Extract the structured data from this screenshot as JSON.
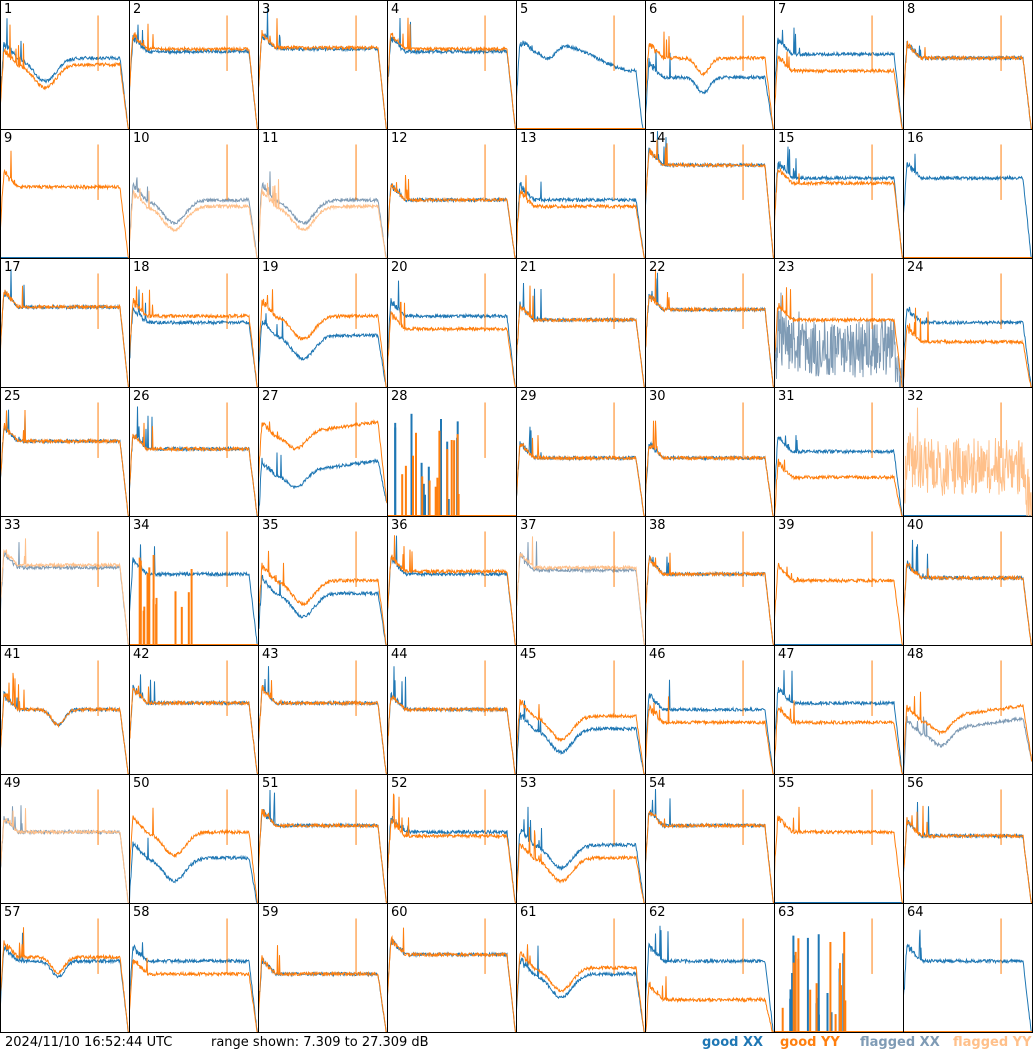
{
  "footer": {
    "timestamp": "2024/11/10 16:52:44 UTC",
    "range_text": "range shown: 7.309 to 27.309 dB"
  },
  "legend": [
    {
      "label": "good XX",
      "color": "#1f77b4"
    },
    {
      "label": "good YY",
      "color": "#ff7f0e"
    },
    {
      "label": "flagged XX",
      "color": "#7f9bb5"
    },
    {
      "label": "flagged YY",
      "color": "#ffc08a"
    }
  ],
  "chart_data": {
    "type": "line",
    "ylim": [
      7.309,
      27.309
    ],
    "yunit": "dB",
    "grid_layout": "8x8",
    "panels": [
      {
        "id": "1",
        "xx": "good",
        "yy": "good",
        "xx_level": 0.55,
        "yy_level": 0.5,
        "shape": "sag"
      },
      {
        "id": "2",
        "xx": "good",
        "yy": "good",
        "xx_level": 0.6,
        "yy_level": 0.62,
        "shape": "flat"
      },
      {
        "id": "3",
        "xx": "good",
        "yy": "good",
        "xx_level": 0.62,
        "yy_level": 0.63,
        "shape": "flat"
      },
      {
        "id": "4",
        "xx": "good",
        "yy": "good",
        "xx_level": 0.6,
        "yy_level": 0.62,
        "shape": "flat"
      },
      {
        "id": "5",
        "xx": "good",
        "yy": "dead",
        "xx_level": 0.55,
        "yy_level": 0,
        "shape": "hump"
      },
      {
        "id": "6",
        "xx": "good",
        "yy": "good",
        "xx_level": 0.4,
        "yy_level": 0.55,
        "shape": "dip"
      },
      {
        "id": "7",
        "xx": "good",
        "yy": "good",
        "xx_level": 0.58,
        "yy_level": 0.45,
        "shape": "flat"
      },
      {
        "id": "8",
        "xx": "good",
        "yy": "good",
        "xx_level": 0.55,
        "yy_level": 0.55,
        "shape": "flat"
      },
      {
        "id": "9",
        "xx": "dead",
        "yy": "good",
        "xx_level": 0,
        "yy_level": 0.55,
        "shape": "flat"
      },
      {
        "id": "10",
        "xx": "flagged",
        "yy": "flagged",
        "xx_level": 0.45,
        "yy_level": 0.4,
        "shape": "sag"
      },
      {
        "id": "11",
        "xx": "flagged",
        "yy": "flagged",
        "xx_level": 0.45,
        "yy_level": 0.4,
        "shape": "sag"
      },
      {
        "id": "12",
        "xx": "good",
        "yy": "good",
        "xx_level": 0.45,
        "yy_level": 0.45,
        "shape": "flat"
      },
      {
        "id": "13",
        "xx": "good",
        "yy": "good",
        "xx_level": 0.45,
        "yy_level": 0.4,
        "shape": "flat"
      },
      {
        "id": "14",
        "xx": "good",
        "yy": "good",
        "xx_level": 0.72,
        "yy_level": 0.72,
        "shape": "flat"
      },
      {
        "id": "15",
        "xx": "good",
        "yy": "good",
        "xx_level": 0.62,
        "yy_level": 0.58,
        "shape": "flat"
      },
      {
        "id": "16",
        "xx": "good",
        "yy": "dead",
        "xx_level": 0.62,
        "yy_level": 0,
        "shape": "flat"
      },
      {
        "id": "17",
        "xx": "good",
        "yy": "good",
        "xx_level": 0.62,
        "yy_level": 0.62,
        "shape": "flat"
      },
      {
        "id": "18",
        "xx": "good",
        "yy": "good",
        "xx_level": 0.5,
        "yy_level": 0.55,
        "shape": "flat"
      },
      {
        "id": "19",
        "xx": "good",
        "yy": "good",
        "xx_level": 0.4,
        "yy_level": 0.55,
        "shape": "sag"
      },
      {
        "id": "20",
        "xx": "good",
        "yy": "good",
        "xx_level": 0.55,
        "yy_level": 0.45,
        "shape": "flat"
      },
      {
        "id": "21",
        "xx": "good",
        "yy": "good",
        "xx_level": 0.52,
        "yy_level": 0.52,
        "shape": "flat"
      },
      {
        "id": "22",
        "xx": "good",
        "yy": "good",
        "xx_level": 0.6,
        "yy_level": 0.6,
        "shape": "flat"
      },
      {
        "id": "23",
        "xx": "flagged",
        "yy": "good",
        "xx_level": 0.3,
        "yy_level": 0.52,
        "shape": "noise"
      },
      {
        "id": "24",
        "xx": "good",
        "yy": "good",
        "xx_level": 0.5,
        "yy_level": 0.35,
        "shape": "flat"
      },
      {
        "id": "25",
        "xx": "good",
        "yy": "good",
        "xx_level": 0.58,
        "yy_level": 0.58,
        "shape": "flat"
      },
      {
        "id": "26",
        "xx": "good",
        "yy": "good",
        "xx_level": 0.52,
        "yy_level": 0.52,
        "shape": "flat"
      },
      {
        "id": "27",
        "xx": "good",
        "yy": "good",
        "xx_level": 0.3,
        "yy_level": 0.6,
        "shape": "rise"
      },
      {
        "id": "28",
        "xx": "dead",
        "yy": "dead",
        "xx_level": 0,
        "yy_level": 0,
        "shape": "spikes"
      },
      {
        "id": "29",
        "xx": "good",
        "yy": "good",
        "xx_level": 0.45,
        "yy_level": 0.45,
        "shape": "flat"
      },
      {
        "id": "30",
        "xx": "good",
        "yy": "good",
        "xx_level": 0.45,
        "yy_level": 0.45,
        "shape": "flat"
      },
      {
        "id": "31",
        "xx": "good",
        "yy": "good",
        "xx_level": 0.5,
        "yy_level": 0.3,
        "shape": "flat"
      },
      {
        "id": "32",
        "xx": "dead",
        "yy": "flagged",
        "xx_level": 0,
        "yy_level": 0.38,
        "shape": "noise"
      },
      {
        "id": "33",
        "xx": "flagged",
        "yy": "flagged",
        "xx_level": 0.6,
        "yy_level": 0.62,
        "shape": "flat"
      },
      {
        "id": "34",
        "xx": "good",
        "yy": "dead",
        "xx_level": 0.55,
        "yy_level": 0,
        "shape": "spikes"
      },
      {
        "id": "35",
        "xx": "good",
        "yy": "good",
        "xx_level": 0.4,
        "yy_level": 0.5,
        "shape": "sag"
      },
      {
        "id": "36",
        "xx": "good",
        "yy": "good",
        "xx_level": 0.55,
        "yy_level": 0.57,
        "shape": "flat"
      },
      {
        "id": "37",
        "xx": "flagged",
        "yy": "flagged",
        "xx_level": 0.58,
        "yy_level": 0.6,
        "shape": "flat"
      },
      {
        "id": "38",
        "xx": "good",
        "yy": "good",
        "xx_level": 0.55,
        "yy_level": 0.55,
        "shape": "flat"
      },
      {
        "id": "39",
        "xx": "dead",
        "yy": "good",
        "xx_level": 0,
        "yy_level": 0.5,
        "shape": "flat"
      },
      {
        "id": "40",
        "xx": "good",
        "yy": "good",
        "xx_level": 0.52,
        "yy_level": 0.52,
        "shape": "flat"
      },
      {
        "id": "41",
        "xx": "good",
        "yy": "good",
        "xx_level": 0.5,
        "yy_level": 0.5,
        "shape": "dip"
      },
      {
        "id": "42",
        "xx": "good",
        "yy": "good",
        "xx_level": 0.55,
        "yy_level": 0.55,
        "shape": "flat"
      },
      {
        "id": "43",
        "xx": "good",
        "yy": "good",
        "xx_level": 0.55,
        "yy_level": 0.55,
        "shape": "flat"
      },
      {
        "id": "44",
        "xx": "good",
        "yy": "good",
        "xx_level": 0.5,
        "yy_level": 0.5,
        "shape": "flat"
      },
      {
        "id": "45",
        "xx": "good",
        "yy": "good",
        "xx_level": 0.35,
        "yy_level": 0.45,
        "shape": "sag"
      },
      {
        "id": "46",
        "xx": "good",
        "yy": "good",
        "xx_level": 0.5,
        "yy_level": 0.4,
        "shape": "flat"
      },
      {
        "id": "47",
        "xx": "good",
        "yy": "good",
        "xx_level": 0.55,
        "yy_level": 0.4,
        "shape": "flat"
      },
      {
        "id": "48",
        "xx": "flagged",
        "yy": "good",
        "xx_level": 0.3,
        "yy_level": 0.4,
        "shape": "rise"
      },
      {
        "id": "49",
        "xx": "flagged",
        "yy": "flagged",
        "xx_level": 0.55,
        "yy_level": 0.55,
        "shape": "flat"
      },
      {
        "id": "50",
        "xx": "good",
        "yy": "good",
        "xx_level": 0.35,
        "yy_level": 0.55,
        "shape": "sag"
      },
      {
        "id": "51",
        "xx": "good",
        "yy": "good",
        "xx_level": 0.6,
        "yy_level": 0.6,
        "shape": "flat"
      },
      {
        "id": "52",
        "xx": "good",
        "yy": "good",
        "xx_level": 0.55,
        "yy_level": 0.52,
        "shape": "flat"
      },
      {
        "id": "53",
        "xx": "good",
        "yy": "good",
        "xx_level": 0.45,
        "yy_level": 0.35,
        "shape": "sag"
      },
      {
        "id": "54",
        "xx": "good",
        "yy": "good",
        "xx_level": 0.6,
        "yy_level": 0.6,
        "shape": "flat"
      },
      {
        "id": "55",
        "xx": "dead",
        "yy": "good",
        "xx_level": 0,
        "yy_level": 0.55,
        "shape": "flat"
      },
      {
        "id": "56",
        "xx": "good",
        "yy": "good",
        "xx_level": 0.52,
        "yy_level": 0.52,
        "shape": "flat"
      },
      {
        "id": "57",
        "xx": "good",
        "yy": "good",
        "xx_level": 0.55,
        "yy_level": 0.58,
        "shape": "dip"
      },
      {
        "id": "58",
        "xx": "good",
        "yy": "good",
        "xx_level": 0.55,
        "yy_level": 0.45,
        "shape": "flat"
      },
      {
        "id": "59",
        "xx": "good",
        "yy": "good",
        "xx_level": 0.45,
        "yy_level": 0.45,
        "shape": "flat"
      },
      {
        "id": "60",
        "xx": "good",
        "yy": "good",
        "xx_level": 0.6,
        "yy_level": 0.6,
        "shape": "flat"
      },
      {
        "id": "61",
        "xx": "good",
        "yy": "good",
        "xx_level": 0.45,
        "yy_level": 0.5,
        "shape": "sag"
      },
      {
        "id": "62",
        "xx": "good",
        "yy": "good",
        "xx_level": 0.55,
        "yy_level": 0.25,
        "shape": "flat"
      },
      {
        "id": "63",
        "xx": "dead",
        "yy": "dead",
        "xx_level": 0,
        "yy_level": 0,
        "shape": "spikes"
      },
      {
        "id": "64",
        "xx": "good",
        "yy": "dead",
        "xx_level": 0.55,
        "yy_level": 0,
        "shape": "flat"
      }
    ]
  }
}
